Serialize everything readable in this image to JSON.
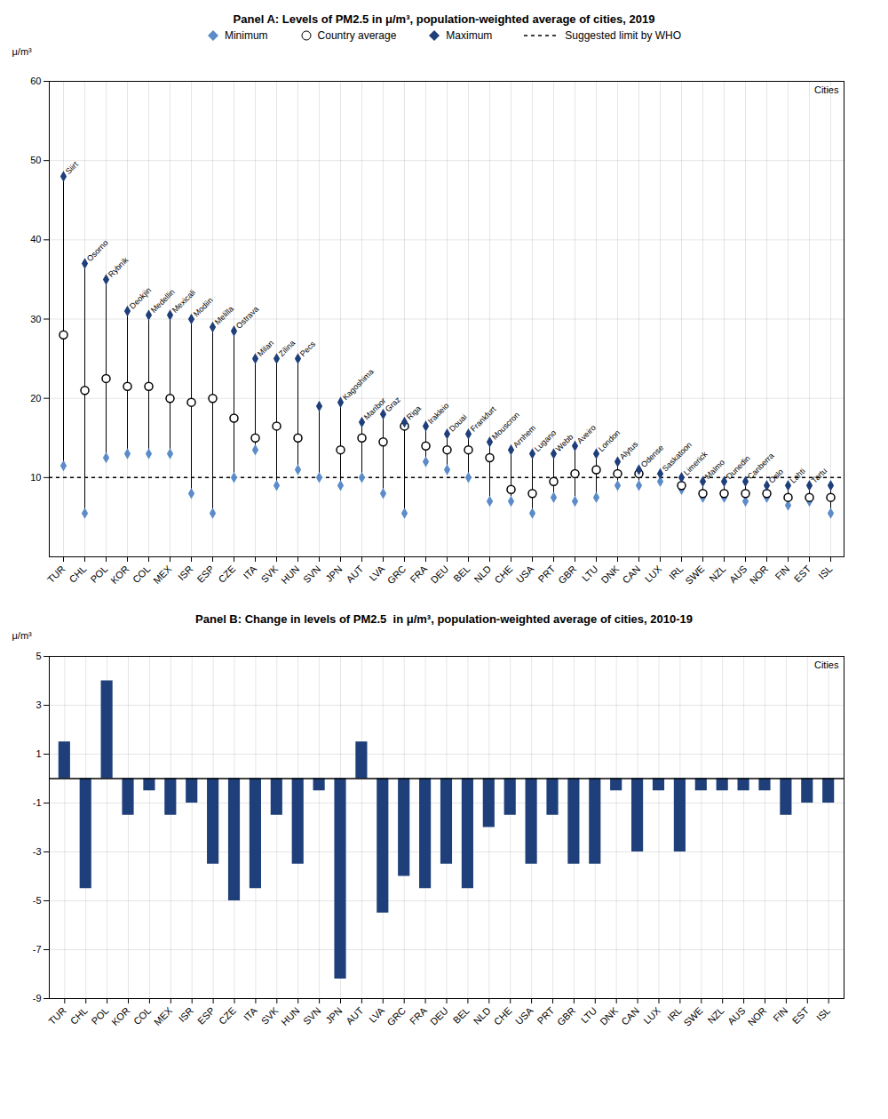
{
  "chart_data": [
    {
      "type": "dumbbell",
      "title": "Panel A: Levels of PM2.5 in μ/m³, population-weighted average of cities, 2019",
      "ylabel": "μ/m³",
      "categories": [
        "TUR",
        "CHL",
        "POL",
        "KOR",
        "COL",
        "MEX",
        "ISR",
        "ESP",
        "CZE",
        "ITA",
        "SVK",
        "HUN",
        "SVN",
        "JPN",
        "AUT",
        "LVA",
        "GRC",
        "FRA",
        "DEU",
        "BEL",
        "NLD",
        "CHE",
        "USA",
        "PRT",
        "GBR",
        "LTU",
        "DNK",
        "CAN",
        "LUX",
        "IRL",
        "SWE",
        "NZL",
        "AUS",
        "NOR",
        "FIN",
        "EST",
        "ISL"
      ],
      "series": [
        {
          "name": "Minimum",
          "color": "#5b8bc9",
          "marker": "diamond",
          "values": [
            11.5,
            5.5,
            12.5,
            13.0,
            13.0,
            13.0,
            8.0,
            5.5,
            10.0,
            13.5,
            9.0,
            11.0,
            10.0,
            9.0,
            10.0,
            8.0,
            5.5,
            12.0,
            11.0,
            10.0,
            7.0,
            7.0,
            5.5,
            7.5,
            7.0,
            7.5,
            9.0,
            9.0,
            9.5,
            8.5,
            7.5,
            7.5,
            7.0,
            7.5,
            6.5,
            7.0,
            5.5
          ]
        },
        {
          "name": "Country average",
          "color": "white",
          "marker": "circle",
          "values": [
            28.0,
            21.0,
            22.5,
            21.5,
            21.5,
            20.0,
            19.5,
            20.0,
            17.5,
            15.0,
            16.5,
            15.0,
            null,
            13.5,
            15.0,
            14.5,
            16.5,
            14.0,
            13.5,
            13.5,
            12.5,
            8.5,
            8.0,
            9.5,
            10.5,
            11.0,
            10.5,
            10.5,
            null,
            9.0,
            8.0,
            8.0,
            8.0,
            8.0,
            7.5,
            7.5,
            7.5
          ]
        },
        {
          "name": "Maximum",
          "color": "#1f3f7a",
          "marker": "diamond",
          "values": [
            48.0,
            37.0,
            35.0,
            31.0,
            30.5,
            30.5,
            30.0,
            29.0,
            28.5,
            25.0,
            25.0,
            25.0,
            19.0,
            19.5,
            17.0,
            18.0,
            17.0,
            16.5,
            15.5,
            15.5,
            14.5,
            13.5,
            13.0,
            13.0,
            14.0,
            13.0,
            12.0,
            11.0,
            10.5,
            10.0,
            9.5,
            9.5,
            9.5,
            9.0,
            9.0,
            9.0,
            9.0
          ],
          "labels": [
            "Siirt",
            "Osorno",
            "Rybnik",
            "Deokjin",
            "Medellin",
            "Mexicali",
            "Modiin",
            "Melilla",
            "Ostrava",
            "Milan",
            "Zilina",
            "Pecs",
            null,
            "Kagoshima",
            "Maribor",
            "Graz",
            "Riga",
            "Irakleio",
            "Douai",
            "Frankfurt",
            "Mouscron",
            "Arnhem",
            "Lugano",
            "Webb",
            "Aveiro",
            "London",
            "Alytus",
            "Odense",
            "Saskatoon",
            "Limerick",
            "Malmo",
            "Dunedin",
            "Canberra",
            "Oslo",
            "Lahti",
            "Tartu",
            null
          ]
        }
      ],
      "reference_lines": [
        {
          "value": 10,
          "label": "Suggested limit by WHO",
          "line_style": "dashed"
        }
      ],
      "annotations": [
        {
          "text": "Cities"
        }
      ],
      "ylim": [
        0,
        60
      ],
      "yticks": [
        10,
        20,
        30,
        40,
        50,
        60
      ],
      "grid": true,
      "legend": "top"
    },
    {
      "type": "bar",
      "title": "Panel B: Change in levels of PM2.5  in μ/m³, population-weighted average of cities, 2010-19",
      "ylabel": "μ/m³",
      "categories": [
        "TUR",
        "CHL",
        "POL",
        "KOR",
        "COL",
        "MEX",
        "ISR",
        "ESP",
        "CZE",
        "ITA",
        "SVK",
        "HUN",
        "SVN",
        "JPN",
        "AUT",
        "LVA",
        "GRC",
        "FRA",
        "DEU",
        "BEL",
        "NLD",
        "CHE",
        "USA",
        "PRT",
        "GBR",
        "LTU",
        "DNK",
        "CAN",
        "LUX",
        "IRL",
        "SWE",
        "NZL",
        "AUS",
        "NOR",
        "FIN",
        "EST",
        "ISL"
      ],
      "values": [
        1.5,
        -4.5,
        4.0,
        -1.5,
        -0.5,
        -1.5,
        -1.0,
        -3.5,
        -5.0,
        -4.5,
        -1.5,
        -3.5,
        -0.5,
        -8.2,
        1.5,
        -5.5,
        -4.0,
        -4.5,
        -3.5,
        -4.5,
        -2.0,
        -1.5,
        -3.5,
        -1.5,
        -3.5,
        -3.5,
        -0.5,
        -3.0,
        -0.5,
        -3.0,
        -0.5,
        -0.5,
        -0.5,
        -0.5,
        -1.5,
        -1.0,
        -1.0
      ],
      "color": "#1f3f7a",
      "annotations": [
        {
          "text": "Cities"
        }
      ],
      "ylim": [
        -9,
        5
      ],
      "yticks": [
        -9,
        -7,
        -5,
        -3,
        -1,
        1,
        3,
        5
      ],
      "grid": true
    }
  ]
}
